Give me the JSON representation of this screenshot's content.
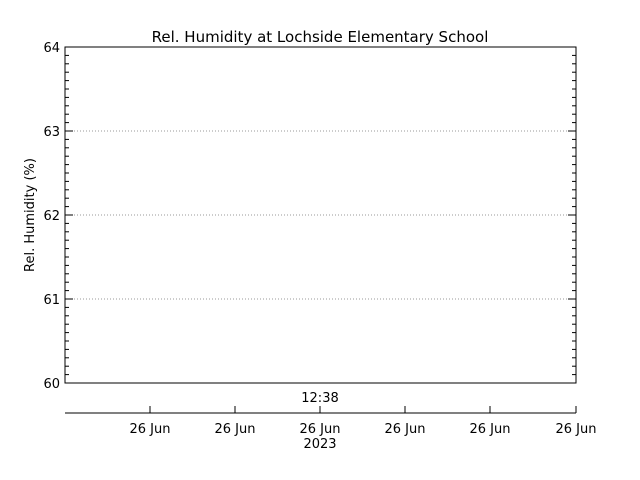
{
  "chart_data": {
    "type": "line",
    "title": "Rel. Humidity at Lochside Elementary School",
    "xlabel": "",
    "ylabel": "Rel. Humidity (%)",
    "ylim": [
      60,
      64
    ],
    "yticks": [
      "60",
      "61",
      "62",
      "63",
      "64"
    ],
    "series": [],
    "grid": "dotted horizontal lines at major y ticks",
    "time_label": "12:38",
    "x_date_ticks": [
      "26 Jun",
      "26 Jun",
      "26 Jun",
      "26 Jun",
      "26 Jun",
      "26 Jun"
    ],
    "year_label": "2023"
  }
}
